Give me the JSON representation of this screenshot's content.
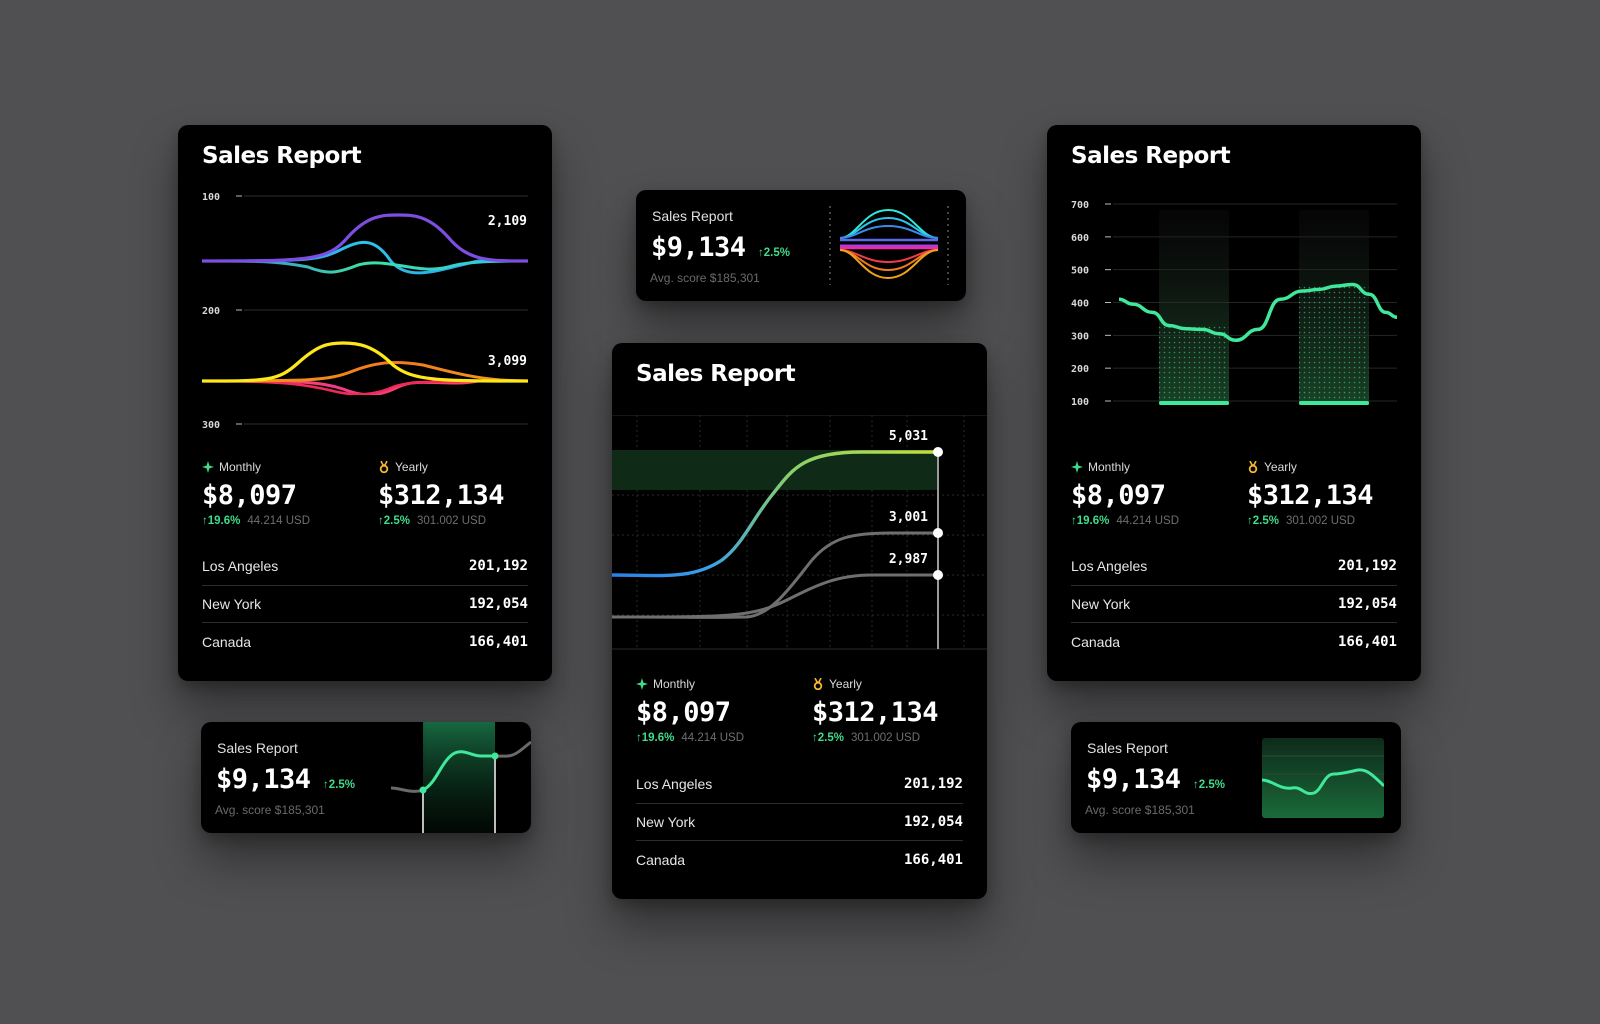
{
  "colors": {
    "background": "#505052",
    "card": "#000000",
    "positive": "#3fdc8a",
    "monthly_icon": "#3fdc8a",
    "yearly_icon": "#f5b82e"
  },
  "icons": {
    "monthly": "sparkle-icon",
    "yearly": "medal-icon",
    "change": "arrow-up-icon"
  },
  "report": {
    "title": "Sales Report",
    "monthly": {
      "label": "Monthly",
      "value": "$8,097",
      "change": "19.6%",
      "sub": "44.214 USD"
    },
    "yearly": {
      "label": "Yearly",
      "value": "$312,134",
      "change": "2.5%",
      "sub": "301.002 USD"
    },
    "cities": [
      {
        "name": "Los Angeles",
        "value": "201,192"
      },
      {
        "name": "New York",
        "value": "192,054"
      },
      {
        "name": "Canada",
        "value": "166,401"
      }
    ]
  },
  "mini": {
    "title": "Sales Report",
    "value": "$9,134",
    "change": "2.5%",
    "avg": "Avg. score $185,301"
  },
  "chart_data": [
    {
      "type": "line",
      "yticks": [
        "100",
        "200",
        "300"
      ],
      "annotations": [
        "2,109",
        "3,099"
      ],
      "groups": [
        {
          "series_colors": [
            "#7d4ee0",
            "#2eb7e8",
            "#3fe0c5"
          ]
        },
        {
          "series_colors": [
            "#ffe81a",
            "#f07a1c",
            "#ef3a6a",
            "#e01f1f"
          ]
        }
      ]
    },
    {
      "type": "line",
      "annotations": [
        "5,031",
        "3,001",
        "2,987"
      ],
      "series": [
        {
          "color": "#c3e03a",
          "start": 0.68,
          "end": 5031
        },
        {
          "color": "#6f6f6f",
          "start": 0,
          "end": 3001
        },
        {
          "color": "#6f6f6f",
          "start": 0,
          "end": 2987
        }
      ]
    },
    {
      "type": "line",
      "yticks": [
        "700",
        "600",
        "500",
        "400",
        "300",
        "200",
        "100"
      ],
      "series": [
        {
          "color": "#3fe89a",
          "x": [
            0,
            0.05,
            0.12,
            0.18,
            0.24,
            0.3,
            0.36,
            0.42,
            0.5,
            0.58,
            0.66,
            0.72,
            0.78,
            0.84,
            0.9,
            0.96,
            1.0
          ],
          "y": [
            410,
            395,
            370,
            330,
            320,
            318,
            305,
            285,
            318,
            410,
            435,
            440,
            450,
            455,
            425,
            370,
            355
          ]
        }
      ]
    }
  ]
}
